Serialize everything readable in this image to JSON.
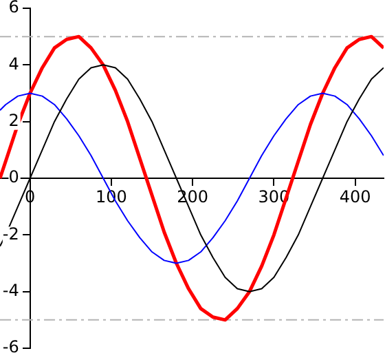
{
  "chart_data": {
    "type": "line",
    "x": [
      -37,
      -30,
      -15,
      0,
      15,
      30,
      45,
      60,
      75,
      90,
      105,
      120,
      135,
      150,
      165,
      180,
      195,
      210,
      225,
      240,
      255,
      270,
      285,
      300,
      315,
      330,
      345,
      360,
      375,
      390,
      405,
      420,
      435
    ],
    "series": [
      {
        "color": "#000000",
        "values": [
          -2.4,
          -2.0,
          -1.0,
          0,
          1.0,
          2.0,
          2.8,
          3.5,
          3.9,
          4,
          3.9,
          3.5,
          2.8,
          2.0,
          1.0,
          0,
          -1.0,
          -2.0,
          -2.8,
          -3.5,
          -3.9,
          -4,
          -3.9,
          -3.5,
          -2.8,
          -2.0,
          -1.0,
          0,
          1.0,
          2.0,
          2.8,
          3.5,
          3.9
        ]
      },
      {
        "color": "#0000ff",
        "values": [
          2.4,
          2.6,
          2.9,
          3,
          2.9,
          2.6,
          2.1,
          1.5,
          0.8,
          0,
          -0.8,
          -1.5,
          -2.1,
          -2.6,
          -2.9,
          -3,
          -2.9,
          -2.6,
          -2.1,
          -1.5,
          -0.8,
          0,
          0.8,
          1.5,
          2.1,
          2.6,
          2.9,
          3,
          2.9,
          2.6,
          2.1,
          1.5,
          0.8
        ]
      },
      {
        "color": "#ff0000",
        "values": [
          0,
          0.6,
          1.9,
          3,
          3.9,
          4.6,
          4.9,
          5.0,
          4.6,
          4,
          3.1,
          2.0,
          0.7,
          -0.6,
          -1.9,
          -3,
          -3.9,
          -4.6,
          -4.9,
          -5.0,
          -4.6,
          -4,
          -3.1,
          -2.0,
          -0.7,
          0.6,
          1.9,
          3,
          3.9,
          4.6,
          4.9,
          5.0,
          4.6
        ]
      }
    ],
    "xlim": [
      -37,
      435
    ],
    "xticks": [
      0,
      100,
      200,
      300,
      400
    ],
    "ylim": [
      -6,
      6
    ],
    "yticks": [
      -6,
      -4,
      -2,
      0,
      2,
      4,
      6
    ],
    "ref_lines": [
      {
        "axis": "y",
        "value": 5,
        "color": "#b4b4b4",
        "line_style": "dashdot"
      },
      {
        "axis": "y",
        "value": -5,
        "color": "#b4b4b4",
        "line_style": "dashdot"
      }
    ],
    "grid": false,
    "legend": false,
    "marker": "none",
    "line_style": "solid"
  }
}
